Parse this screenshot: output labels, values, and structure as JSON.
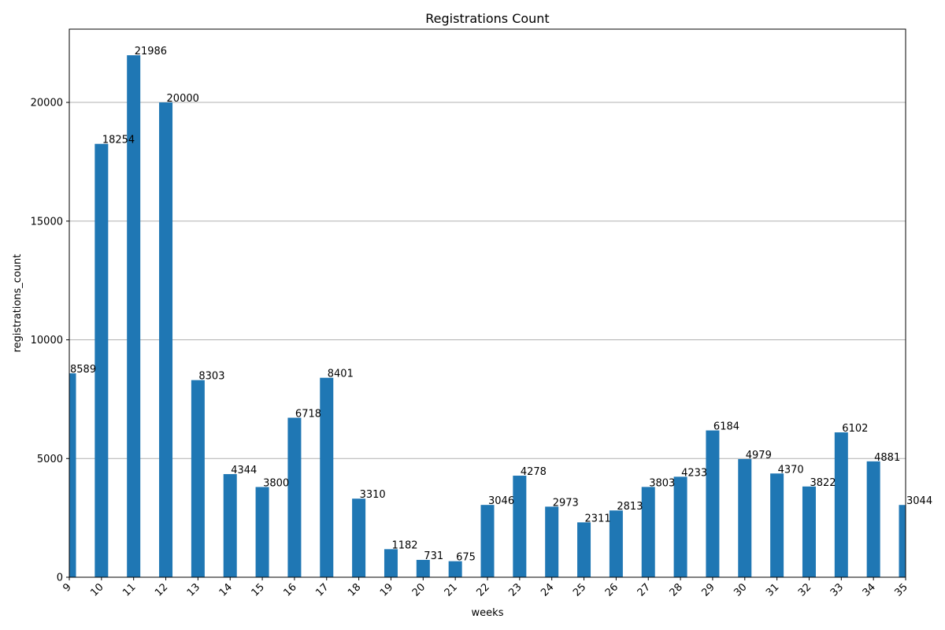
{
  "chart_data": {
    "type": "bar",
    "title": "Registrations Count",
    "xlabel": "weeks",
    "ylabel": "registrations_count",
    "categories": [
      "9",
      "10",
      "11",
      "12",
      "13",
      "14",
      "15",
      "16",
      "17",
      "18",
      "19",
      "20",
      "21",
      "22",
      "23",
      "24",
      "25",
      "26",
      "27",
      "28",
      "29",
      "30",
      "31",
      "32",
      "33",
      "34",
      "35"
    ],
    "values": [
      8589,
      18254,
      21986,
      20000,
      8303,
      4344,
      3800,
      6718,
      8401,
      3310,
      1182,
      731,
      675,
      3046,
      4278,
      2973,
      2311,
      2813,
      3803,
      4233,
      6184,
      4979,
      4370,
      3822,
      6102,
      4881,
      3044
    ],
    "ylim": [
      0,
      23086
    ],
    "yticks": [
      0,
      5000,
      10000,
      15000,
      20000
    ],
    "grid": "horizontal",
    "bar_color": "#1f77b4",
    "x_tick_rotation_deg": 45
  }
}
